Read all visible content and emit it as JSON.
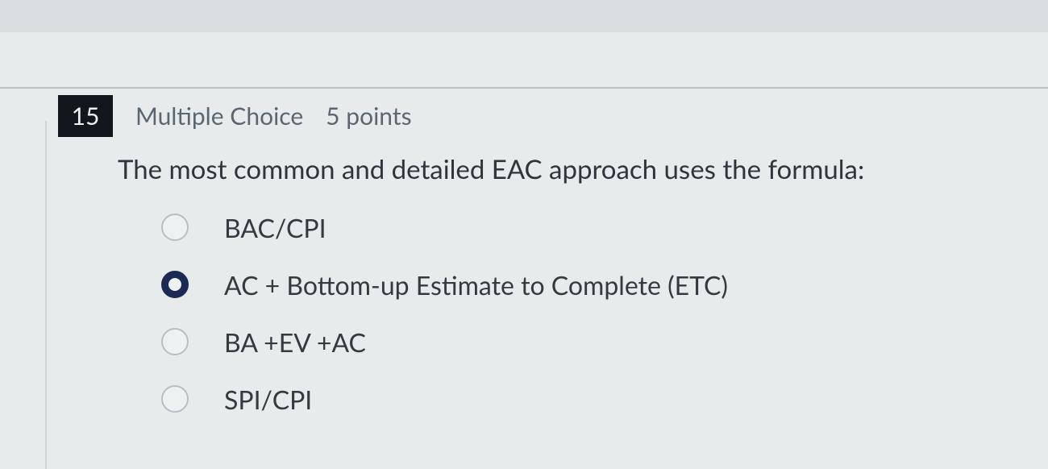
{
  "question": {
    "number": "15",
    "type_label": "Multiple Choice",
    "points_label": "5 points",
    "stem": "The most common and detailed EAC approach uses the formula:",
    "selected_index": 1,
    "options": [
      {
        "label": "BAC/CPI"
      },
      {
        "label": "AC + Bottom-up Estimate to Complete (ETC)"
      },
      {
        "label": "BA +EV +AC"
      },
      {
        "label": "SPI/CPI"
      }
    ]
  },
  "colors": {
    "page_bg": "#e7ebec",
    "topbar_bg": "#d9dfe1",
    "number_bg": "#13161d",
    "number_fg": "#eef0f2",
    "meta_text": "#5c6670",
    "stem_text": "#2e353b",
    "option_text": "#333a40",
    "radio_border": "#b7bfc4",
    "radio_selected": "#1a2a52",
    "divider": "#b9c1c4"
  }
}
